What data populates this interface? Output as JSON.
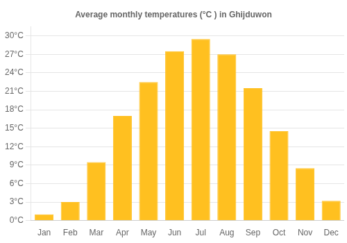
{
  "chart_data": {
    "type": "bar",
    "title": "Average monthly temperatures (°C ) in Ghijduwon",
    "categories": [
      "Jan",
      "Feb",
      "Mar",
      "Apr",
      "May",
      "Jun",
      "Jul",
      "Aug",
      "Sep",
      "Oct",
      "Nov",
      "Dec"
    ],
    "values": [
      1.0,
      3.0,
      9.5,
      17.0,
      22.5,
      27.5,
      29.5,
      27.0,
      21.5,
      14.5,
      8.5,
      3.2
    ],
    "color": "#FFC020",
    "ylim": [
      0,
      31.5
    ],
    "yticks": [
      {
        "value": 0,
        "label": "0°C"
      },
      {
        "value": 3,
        "label": "3°C"
      },
      {
        "value": 6,
        "label": "6°C"
      },
      {
        "value": 9,
        "label": "9°C"
      },
      {
        "value": 12,
        "label": "12°C"
      },
      {
        "value": 15,
        "label": "15°C"
      },
      {
        "value": 18,
        "label": "18°C"
      },
      {
        "value": 21,
        "label": "21°C"
      },
      {
        "value": 24,
        "label": "24°C"
      },
      {
        "value": 27,
        "label": "27°C"
      },
      {
        "value": 30,
        "label": "30°C"
      }
    ],
    "grid": true
  }
}
